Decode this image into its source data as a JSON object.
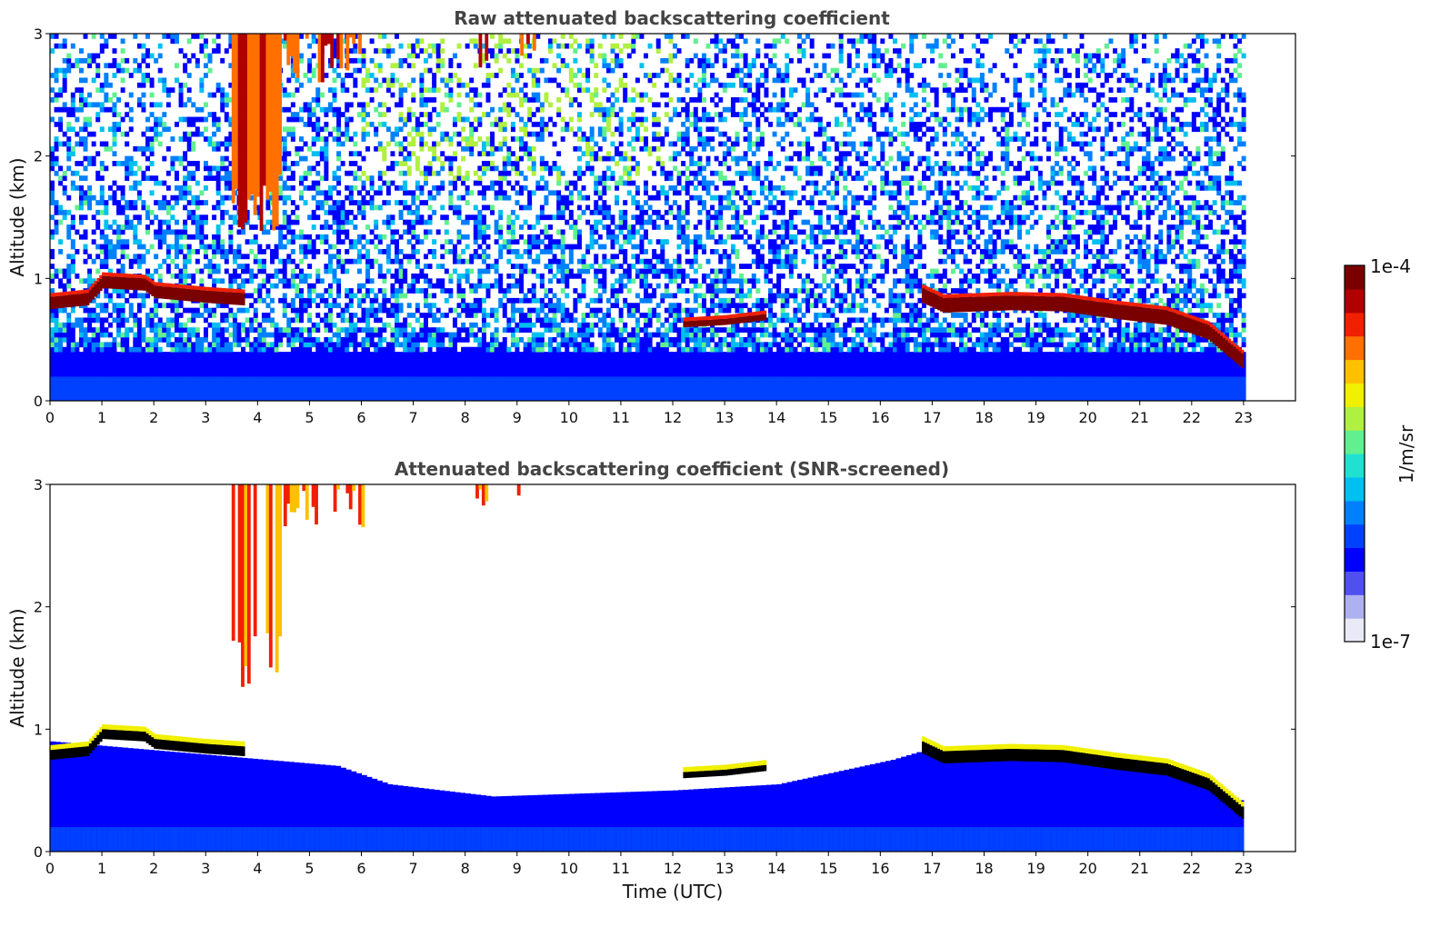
{
  "chart_data": [
    {
      "type": "heatmap",
      "title": "Raw attenuated backscattering coefficient",
      "xlabel": "",
      "ylabel": "Altitude (km)",
      "xlim": [
        0,
        24
      ],
      "ylim": [
        0,
        3
      ],
      "xticks": [
        "0",
        "1",
        "2",
        "3",
        "4",
        "5",
        "6",
        "7",
        "8",
        "9",
        "10",
        "11",
        "12",
        "13",
        "14",
        "15",
        "16",
        "17",
        "18",
        "19",
        "20",
        "21",
        "22",
        "23"
      ],
      "yticks": [
        "0",
        "1",
        "2",
        "3"
      ],
      "features": {
        "data_end_hour": 23,
        "cloud_layer": [
          {
            "t": 0,
            "h": 0.75
          },
          {
            "t": 0.7,
            "h": 0.78
          },
          {
            "t": 1.0,
            "h": 0.92
          },
          {
            "t": 1.8,
            "h": 0.9
          },
          {
            "t": 2.0,
            "h": 0.84
          },
          {
            "t": 3.0,
            "h": 0.8
          },
          {
            "t": 3.7,
            "h": 0.78
          }
        ],
        "cloud_layer_2": [
          {
            "t": 16.8,
            "h": 0.8
          },
          {
            "t": 17.2,
            "h": 0.72
          },
          {
            "t": 18.5,
            "h": 0.74
          },
          {
            "t": 19.5,
            "h": 0.73
          },
          {
            "t": 20.5,
            "h": 0.67
          },
          {
            "t": 21.5,
            "h": 0.62
          },
          {
            "t": 22.3,
            "h": 0.5
          },
          {
            "t": 23,
            "h": 0.25
          }
        ],
        "patch_layer": [
          {
            "t": 12.2,
            "h": 0.6
          },
          {
            "t": 13.0,
            "h": 0.62
          },
          {
            "t": 13.8,
            "h": 0.66
          }
        ],
        "high_clouds": [
          {
            "t0": 3.5,
            "t1": 4.4,
            "base": 1.3
          },
          {
            "t0": 4.5,
            "t1": 6.0,
            "base": 2.6
          },
          {
            "t0": 8.2,
            "t1": 8.5,
            "base": 2.6
          },
          {
            "t0": 9.0,
            "t1": 9.4,
            "base": 2.7
          }
        ],
        "boundary_layer_top": 0.38
      }
    },
    {
      "type": "heatmap",
      "title": "Attenuated backscattering coefficient (SNR-screened)",
      "xlabel": "Time (UTC)",
      "ylabel": "Altitude (km)",
      "xlim": [
        0,
        24
      ],
      "ylim": [
        0,
        3
      ],
      "xticks": [
        "0",
        "1",
        "2",
        "3",
        "4",
        "5",
        "6",
        "7",
        "8",
        "9",
        "10",
        "11",
        "12",
        "13",
        "14",
        "15",
        "16",
        "17",
        "18",
        "19",
        "20",
        "21",
        "22",
        "23"
      ],
      "yticks": [
        "0",
        "1",
        "2",
        "3"
      ],
      "features": {
        "data_end_hour": 23,
        "aerosol_top": [
          {
            "t": 0,
            "h": 0.9
          },
          {
            "t": 5.5,
            "h": 0.7
          },
          {
            "t": 6.5,
            "h": 0.55
          },
          {
            "t": 8.5,
            "h": 0.45
          },
          {
            "t": 12,
            "h": 0.5
          },
          {
            "t": 14,
            "h": 0.55
          },
          {
            "t": 16.2,
            "h": 0.75
          },
          {
            "t": 17,
            "h": 0.85
          },
          {
            "t": 20,
            "h": 0.75
          },
          {
            "t": 22,
            "h": 0.6
          },
          {
            "t": 23,
            "h": 0.4
          }
        ]
      }
    }
  ],
  "colorbar": {
    "unit_label": "1/m/sr",
    "max_label": "1e-4",
    "min_label": "1e-7",
    "colors": [
      "#e9e9f7",
      "#aeb0ef",
      "#5050f0",
      "#0000ff",
      "#0040ff",
      "#0080ff",
      "#00c0f0",
      "#20e0d0",
      "#60f090",
      "#b0f040",
      "#f0f000",
      "#ffc000",
      "#ff7000",
      "#f02000",
      "#b00000",
      "#7a0000"
    ]
  }
}
